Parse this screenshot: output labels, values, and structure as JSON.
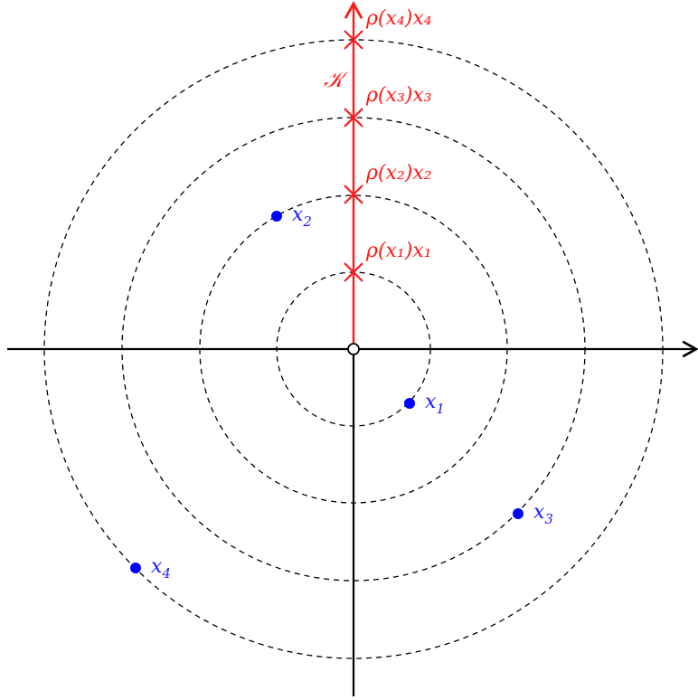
{
  "colors": {
    "ray": "#ff1a1a",
    "points": "#0000ff",
    "axes": "#000000",
    "circles": "#000000"
  },
  "cone_label": "𝒦",
  "points": [
    {
      "label": "x",
      "sub": "1"
    },
    {
      "label": "x",
      "sub": "2"
    },
    {
      "label": "x",
      "sub": "3"
    },
    {
      "label": "x",
      "sub": "4"
    }
  ],
  "projections": [
    {
      "label": "ρ(x₁)x₁"
    },
    {
      "label": "ρ(x₂)x₂"
    },
    {
      "label": "ρ(x₃)x₃"
    },
    {
      "label": "ρ(x₄)x₄"
    }
  ],
  "origin_marker": "open-circle"
}
